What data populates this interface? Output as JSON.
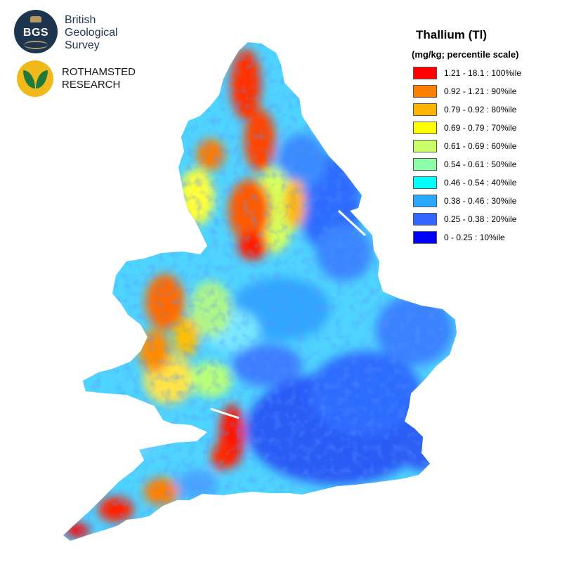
{
  "logos": {
    "bgs": {
      "badge_text": "BGS",
      "lines": [
        "British",
        "Geological",
        "Survey"
      ]
    },
    "rothamsted": {
      "lines": [
        "ROTHAMSTED",
        "RESEARCH"
      ]
    }
  },
  "legend": {
    "title": "Thallium (Tl)",
    "subtitle": "(mg/kg; percentile scale)",
    "items": [
      {
        "label": "1.21 - 18.1 : 100%ile",
        "color": "#ff0000"
      },
      {
        "label": "0.92 - 1.21 : 90%ile",
        "color": "#ff7f00"
      },
      {
        "label": "0.79 - 0.92 : 80%ile",
        "color": "#ffb200"
      },
      {
        "label": "0.69 - 0.79 : 70%ile",
        "color": "#ffff00"
      },
      {
        "label": "0.61 - 0.69 : 60%ile",
        "color": "#ccff66"
      },
      {
        "label": "0.54 - 0.61 : 50%ile",
        "color": "#8cffa8"
      },
      {
        "label": "0.46 - 0.54 : 40%ile",
        "color": "#00ffff"
      },
      {
        "label": "0.38 - 0.46 : 30%ile",
        "color": "#2ba8ff"
      },
      {
        "label": "0.25 - 0.38 : 20%ile",
        "color": "#3366ff"
      },
      {
        "label": "0 - 0.25 : 10%ile",
        "color": "#0000ff"
      }
    ]
  }
}
